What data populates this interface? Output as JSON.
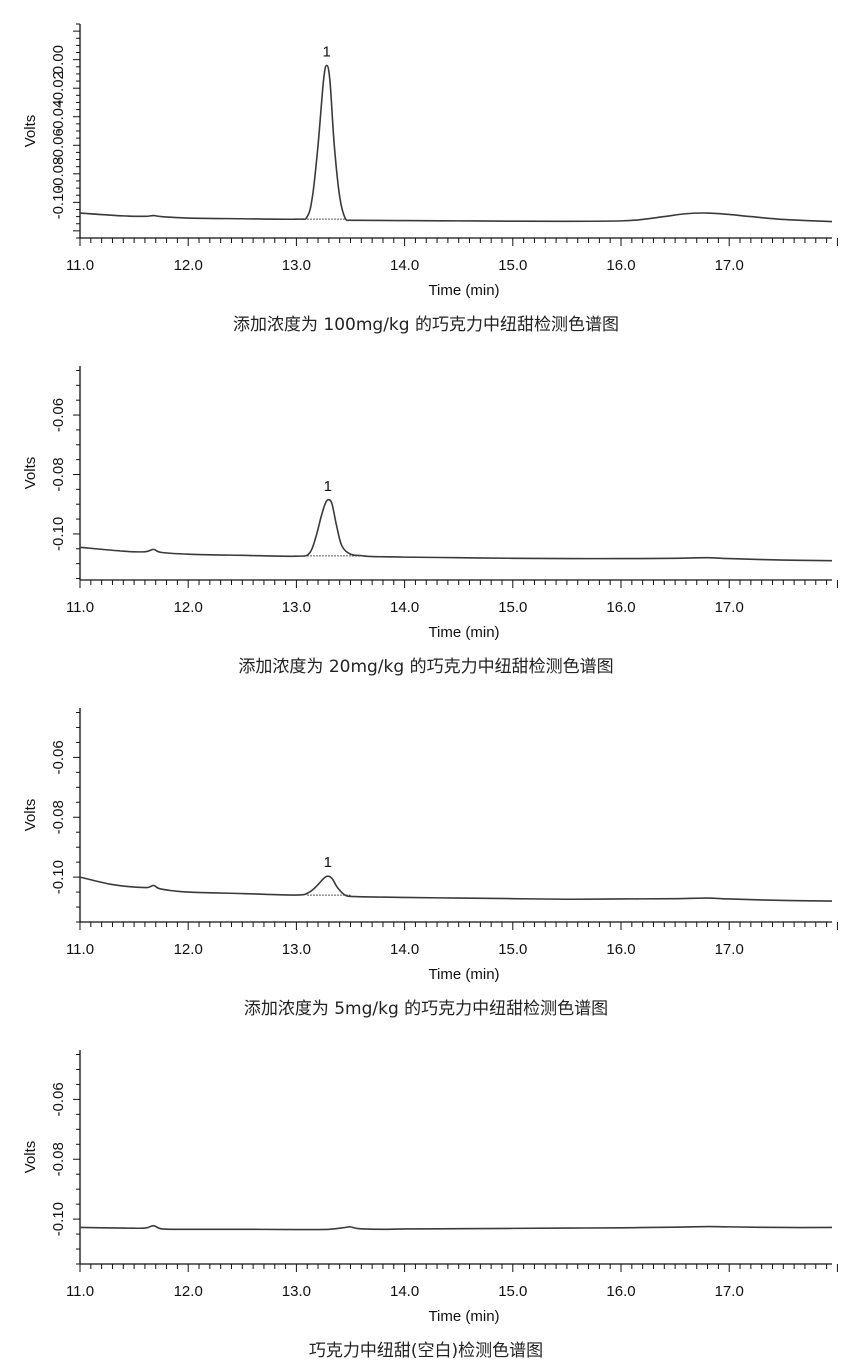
{
  "chart_data": [
    {
      "type": "line",
      "title": "",
      "caption": "添加浓度为 100mg/kg 的巧克力中纽甜检测色谱图",
      "xlabel": "Time (min)",
      "ylabel": "Volts",
      "x_ticks": [
        "11.0",
        "12.0",
        "13.0",
        "14.0",
        "15.0",
        "16.0",
        "17.0"
      ],
      "y_ticks": [
        "0.00",
        "-0.02",
        "-0.04",
        "-0.06",
        "-0.08",
        "-0.10"
      ],
      "xlim": [
        11.0,
        17.95
      ],
      "ylim": [
        -0.125,
        0.025
      ],
      "grid": false,
      "series": [
        {
          "x": [
            11.0,
            11.4,
            11.6,
            11.68,
            11.75,
            12.0,
            12.5,
            13.0,
            13.1,
            13.15,
            13.2,
            13.25,
            13.28,
            13.31,
            13.35,
            13.4,
            13.45,
            13.5,
            13.6,
            14.0,
            14.5,
            15.0,
            15.5,
            16.0,
            16.2,
            16.4,
            16.6,
            16.8,
            17.0,
            17.2,
            17.5,
            17.95
          ],
          "values": [
            -0.1075,
            -0.1095,
            -0.1098,
            -0.1093,
            -0.11,
            -0.111,
            -0.1115,
            -0.1118,
            -0.11,
            -0.095,
            -0.06,
            -0.015,
            -0.004,
            -0.015,
            -0.06,
            -0.096,
            -0.111,
            -0.1125,
            -0.1126,
            -0.1128,
            -0.113,
            -0.1132,
            -0.1133,
            -0.113,
            -0.112,
            -0.11,
            -0.108,
            -0.1075,
            -0.1085,
            -0.11,
            -0.112,
            -0.1135
          ]
        }
      ],
      "peaks": [
        {
          "label": "1",
          "x": 13.28,
          "y": -0.004
        }
      ],
      "baseline": {
        "x": [
          13.1,
          13.45
        ],
        "y": [
          -0.1118,
          -0.1118
        ]
      }
    },
    {
      "type": "line",
      "title": "",
      "caption": "添加浓度为 20mg/kg 的巧克力中纽甜检测色谱图",
      "xlabel": "Time (min)",
      "ylabel": "Volts",
      "x_ticks": [
        "11.0",
        "12.0",
        "13.0",
        "14.0",
        "15.0",
        "16.0",
        "17.0"
      ],
      "y_ticks": [
        "-0.06",
        "-0.08",
        "-0.10"
      ],
      "xlim": [
        11.0,
        17.95
      ],
      "ylim": [
        -0.1155,
        -0.0435
      ],
      "grid": false,
      "series": [
        {
          "x": [
            11.0,
            11.4,
            11.6,
            11.68,
            11.75,
            12.0,
            12.5,
            13.0,
            13.12,
            13.18,
            13.23,
            13.27,
            13.3,
            13.33,
            13.37,
            13.42,
            13.5,
            13.6,
            13.7,
            14.0,
            14.5,
            15.0,
            15.5,
            16.0,
            16.5,
            16.8,
            17.0,
            17.5,
            17.95
          ],
          "values": [
            -0.1045,
            -0.1058,
            -0.106,
            -0.1052,
            -0.1062,
            -0.1068,
            -0.1072,
            -0.1075,
            -0.1065,
            -0.101,
            -0.094,
            -0.0895,
            -0.0885,
            -0.09,
            -0.097,
            -0.104,
            -0.1068,
            -0.1073,
            -0.1076,
            -0.1078,
            -0.108,
            -0.1082,
            -0.1083,
            -0.1083,
            -0.1082,
            -0.108,
            -0.1083,
            -0.1088,
            -0.109
          ]
        }
      ],
      "peaks": [
        {
          "label": "1",
          "x": 13.29,
          "y": -0.0885
        }
      ],
      "baseline": {
        "x": [
          13.1,
          13.65
        ],
        "y": [
          -0.1074,
          -0.1074
        ]
      }
    },
    {
      "type": "line",
      "title": "",
      "caption": "添加浓度为 5mg/kg 的巧克力中纽甜检测色谱图",
      "xlabel": "Time (min)",
      "ylabel": "Volts",
      "x_ticks": [
        "11.0",
        "12.0",
        "13.0",
        "14.0",
        "15.0",
        "16.0",
        "17.0"
      ],
      "y_ticks": [
        "-0.06",
        "-0.08",
        "-0.10"
      ],
      "xlim": [
        11.0,
        17.95
      ],
      "ylim": [
        -0.115,
        -0.0435
      ],
      "grid": false,
      "series": [
        {
          "x": [
            11.0,
            11.3,
            11.6,
            11.68,
            11.75,
            12.0,
            12.5,
            13.0,
            13.12,
            13.2,
            13.25,
            13.29,
            13.33,
            13.38,
            13.45,
            13.55,
            14.0,
            14.5,
            15.0,
            15.5,
            16.0,
            16.5,
            16.8,
            17.0,
            17.5,
            17.95
          ],
          "values": [
            -0.1,
            -0.1025,
            -0.1035,
            -0.1028,
            -0.104,
            -0.105,
            -0.1055,
            -0.106,
            -0.105,
            -0.1025,
            -0.1005,
            -0.0997,
            -0.1005,
            -0.1035,
            -0.106,
            -0.1065,
            -0.1068,
            -0.107,
            -0.1072,
            -0.1074,
            -0.1073,
            -0.1072,
            -0.107,
            -0.1073,
            -0.1078,
            -0.108
          ]
        }
      ],
      "peaks": [
        {
          "label": "1",
          "x": 13.29,
          "y": -0.0997
        }
      ],
      "baseline": {
        "x": [
          13.1,
          13.5
        ],
        "y": [
          -0.106,
          -0.106
        ]
      }
    },
    {
      "type": "line",
      "title": "",
      "caption": "巧克力中纽甜(空白)检测色谱图",
      "xlabel": "Time (min)",
      "ylabel": "Volts",
      "x_ticks": [
        "11.0",
        "12.0",
        "13.0",
        "14.0",
        "15.0",
        "16.0",
        "17.0"
      ],
      "y_ticks": [
        "-0.06",
        "-0.08",
        "-0.10"
      ],
      "xlim": [
        11.0,
        17.95
      ],
      "ylim": [
        -0.115,
        -0.0435
      ],
      "grid": false,
      "series": [
        {
          "x": [
            11.0,
            11.4,
            11.6,
            11.68,
            11.76,
            12.0,
            12.5,
            13.0,
            13.3,
            13.45,
            13.5,
            13.58,
            13.8,
            14.0,
            14.5,
            15.0,
            15.5,
            16.0,
            16.5,
            16.8,
            17.0,
            17.5,
            17.95
          ],
          "values": [
            -0.1028,
            -0.103,
            -0.103,
            -0.1022,
            -0.1033,
            -0.1034,
            -0.1034,
            -0.1035,
            -0.1034,
            -0.1028,
            -0.1026,
            -0.1032,
            -0.1034,
            -0.1033,
            -0.1032,
            -0.1031,
            -0.103,
            -0.1029,
            -0.1027,
            -0.1025,
            -0.1026,
            -0.1028,
            -0.1028
          ]
        }
      ],
      "peaks": [],
      "baseline": null
    }
  ]
}
